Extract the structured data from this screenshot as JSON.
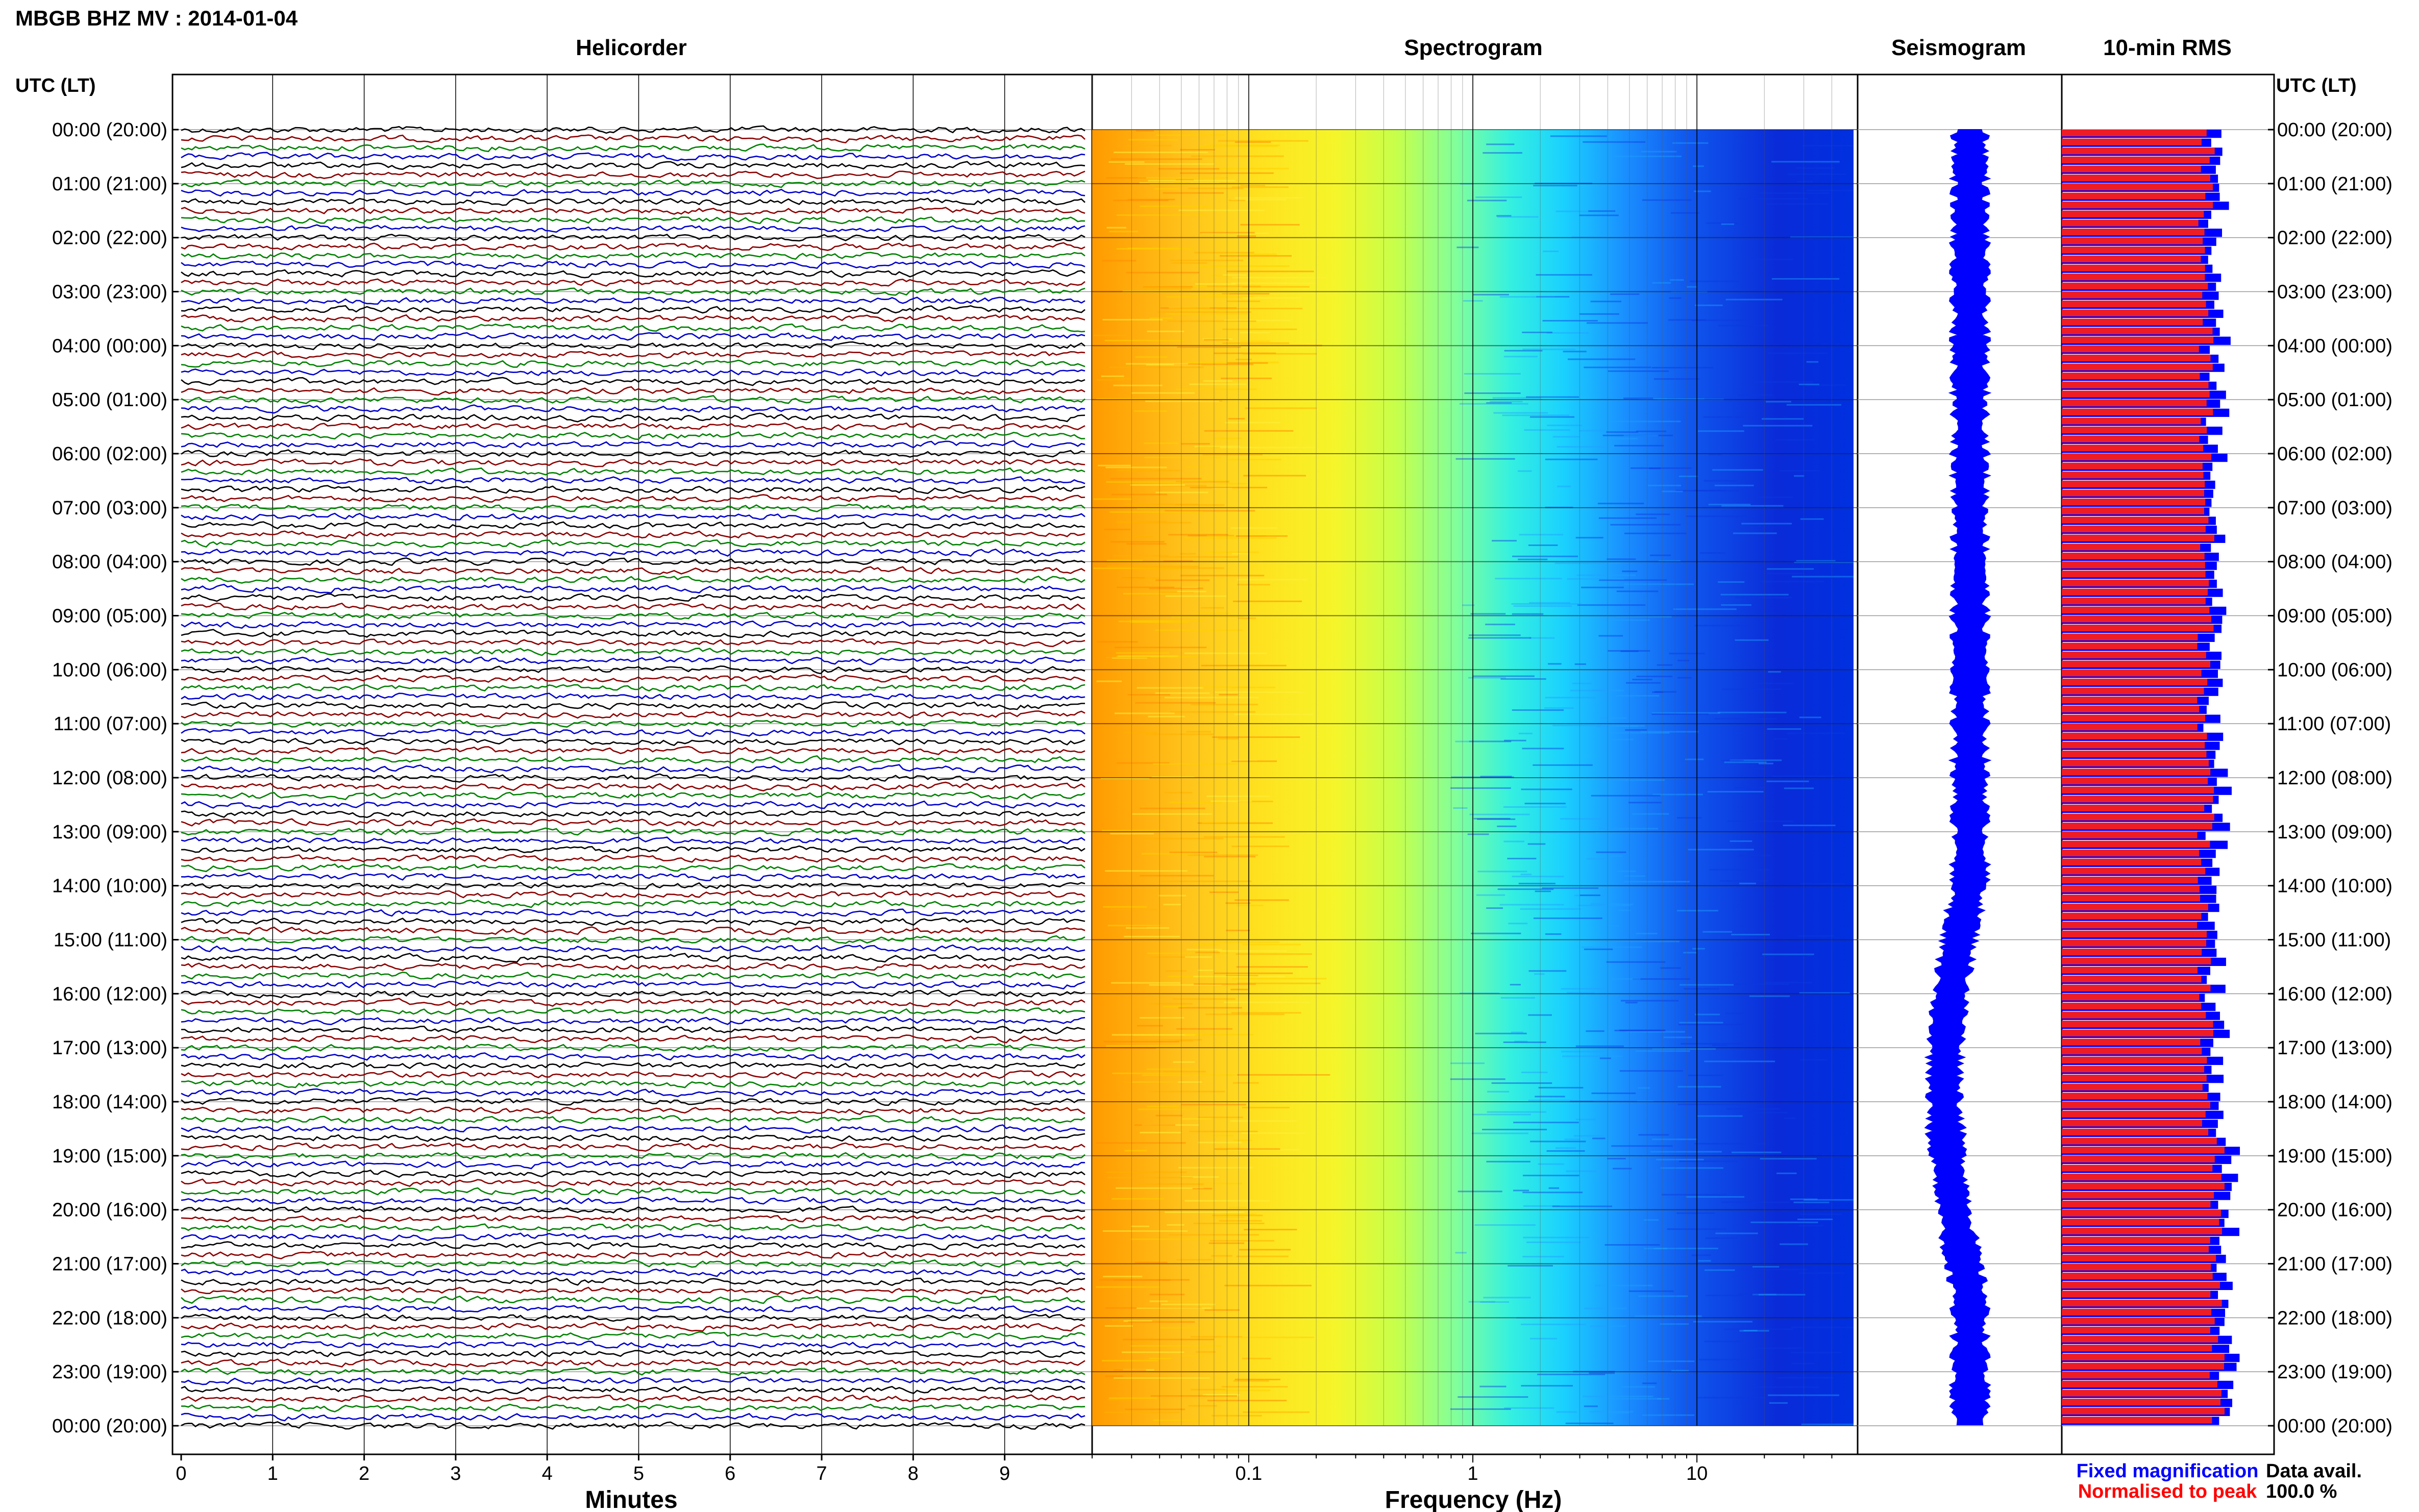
{
  "header": {
    "station_title": "MBGB BHZ MV : 2014-01-04",
    "utc_label": "UTC (LT)"
  },
  "panels": {
    "helicorder": "Helicorder",
    "spectrogram": "Spectrogram",
    "seismogram": "Seismogram",
    "rms": "10-min RMS"
  },
  "time_labels": [
    "00:00 (20:00)",
    "01:00 (21:00)",
    "02:00 (22:00)",
    "03:00 (23:00)",
    "04:00 (00:00)",
    "05:00 (01:00)",
    "06:00 (02:00)",
    "07:00 (03:00)",
    "08:00 (04:00)",
    "09:00 (05:00)",
    "10:00 (06:00)",
    "11:00 (07:00)",
    "12:00 (08:00)",
    "13:00 (09:00)",
    "14:00 (10:00)",
    "15:00 (11:00)",
    "16:00 (12:00)",
    "17:00 (13:00)",
    "18:00 (14:00)",
    "19:00 (15:00)",
    "20:00 (16:00)",
    "21:00 (17:00)",
    "22:00 (18:00)",
    "23:00 (19:00)",
    "00:00 (20:00)"
  ],
  "axes": {
    "minutes_label": "Minutes",
    "minutes_ticks": [
      "0",
      "1",
      "2",
      "3",
      "4",
      "5",
      "6",
      "7",
      "8",
      "9"
    ],
    "frequency_label": "Frequency (Hz)",
    "frequency_ticks": [
      "0.1",
      "1",
      "10"
    ]
  },
  "legend": {
    "fixed": "Fixed magnification",
    "normalised": "Normalised to peak",
    "fixed_color": "#0000ff",
    "normalised_color": "#ff0000"
  },
  "availability": {
    "label": "Data avail.",
    "value": "100.0 %"
  },
  "colors": {
    "trace_cycle": [
      "#000000",
      "#8b0000",
      "#008000",
      "#0000cc"
    ],
    "rms_bar_fixed": "#0000ff",
    "rms_bar_normalised": "#ee1c25",
    "seismogram": "#0000ff"
  },
  "chart_data": [
    {
      "type": "line",
      "title": "Helicorder",
      "xlabel": "Minutes",
      "x_range_minutes": [
        0,
        10
      ],
      "rows": 144,
      "row_duration_minutes": 10,
      "y_tick_labels_utc_lt": "time_labels"
    },
    {
      "type": "heatmap",
      "title": "Spectrogram",
      "xlabel": "Frequency (Hz)",
      "x_scale": "log",
      "x_range_hz": [
        0.02,
        50
      ],
      "colormap": [
        "#ff7f00",
        "#ffd700",
        "#ffff33",
        "#7fff7f",
        "#00e5ff",
        "#0070ff",
        "#0000cc"
      ],
      "dominant_energy": "below 0.3 Hz (orange/yellow), falling to blue above ~2 Hz"
    },
    {
      "type": "line",
      "title": "Seismogram",
      "note": "24-hour trace, vertical"
    },
    {
      "type": "bar",
      "title": "10-min RMS",
      "series": [
        {
          "name": "Fixed magnification"
        },
        {
          "name": "Normalised to peak"
        }
      ]
    }
  ]
}
